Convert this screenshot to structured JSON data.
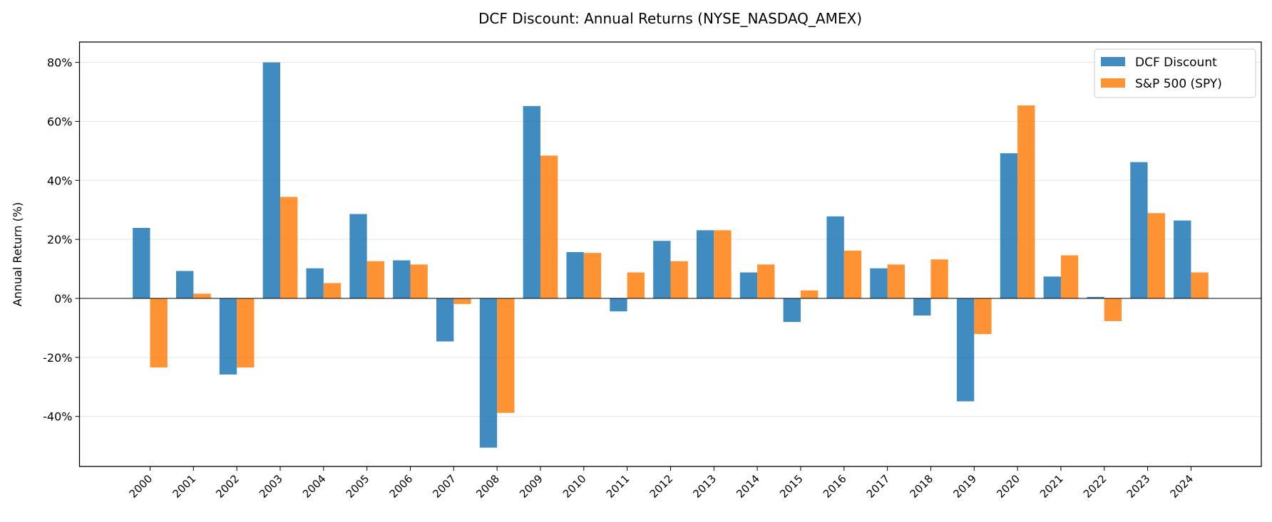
{
  "chart_data": {
    "type": "bar",
    "title": "DCF Discount: Annual Returns (NYSE_NASDAQ_AMEX)",
    "xlabel": "",
    "ylabel": "Annual Return (%)",
    "ylim": [
      -57,
      87
    ],
    "yticks": [
      -40,
      -20,
      0,
      20,
      40,
      60,
      80
    ],
    "ytick_labels": [
      "-40%",
      "-20%",
      "0%",
      "20%",
      "40%",
      "60%",
      "80%"
    ],
    "grid": "horizontal",
    "legend_position": "top-right",
    "categories": [
      "2000",
      "2001",
      "2002",
      "2003",
      "2004",
      "2005",
      "2006",
      "2007",
      "2008",
      "2009",
      "2010",
      "2011",
      "2012",
      "2013",
      "2014",
      "2015",
      "2016",
      "2017",
      "2018",
      "2019",
      "2020",
      "2021",
      "2022",
      "2023",
      "2024"
    ],
    "series": [
      {
        "name": "DCF Discount",
        "color": "#1f77b4",
        "values": [
          23.9,
          9.3,
          -25.8,
          80.0,
          10.2,
          28.6,
          12.9,
          -14.6,
          -50.6,
          65.2,
          15.7,
          -4.4,
          19.5,
          23.1,
          8.8,
          -8.0,
          27.8,
          10.2,
          -5.8,
          -34.9,
          49.2,
          7.4,
          0.5,
          46.2,
          26.4
        ]
      },
      {
        "name": "S&P 500 (SPY)",
        "color": "#ff7f0e",
        "values": [
          -23.4,
          1.6,
          -23.4,
          34.4,
          5.2,
          12.6,
          11.5,
          -1.9,
          -38.8,
          48.4,
          15.4,
          8.8,
          12.6,
          23.1,
          11.5,
          2.7,
          16.2,
          11.5,
          13.2,
          -12.1,
          65.4,
          14.6,
          -7.7,
          28.9,
          8.8
        ]
      }
    ]
  }
}
